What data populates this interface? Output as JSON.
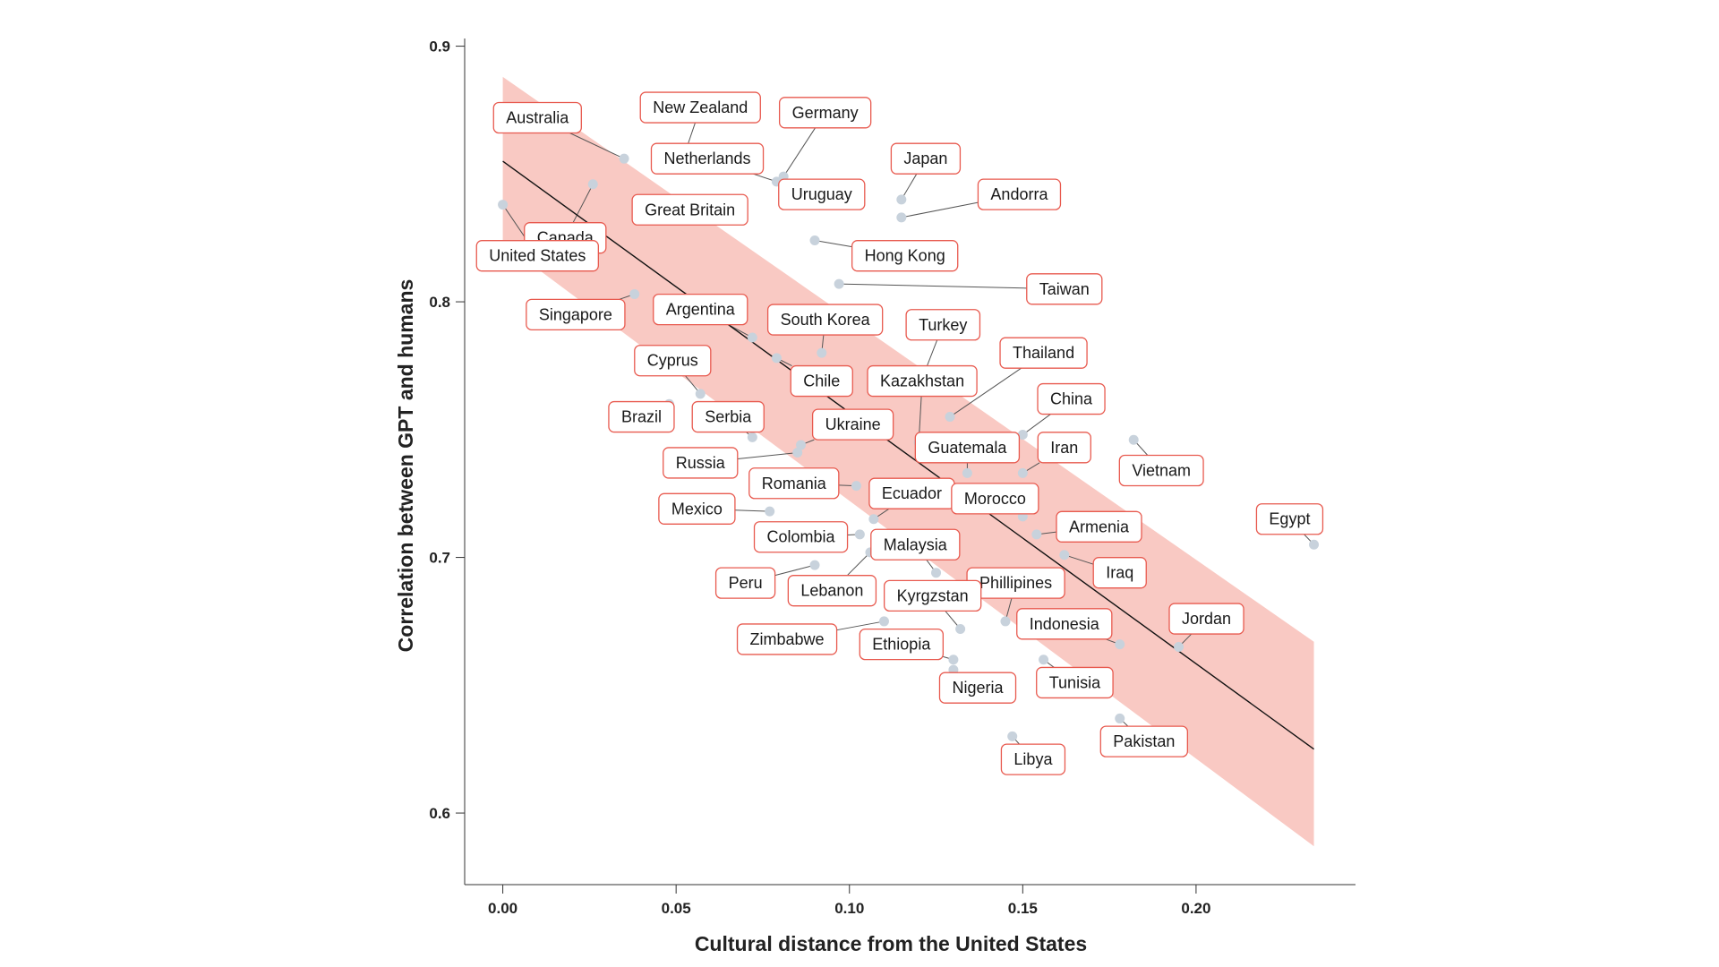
{
  "chart_data": {
    "type": "scatter",
    "title": "",
    "xlabel": "Cultural distance from the United States",
    "ylabel": "Correlation between GPT and humans",
    "xlim": [
      -0.011,
      0.246
    ],
    "ylim": [
      0.572,
      0.903
    ],
    "xticks": [
      0.0,
      0.05,
      0.1,
      0.15,
      0.2
    ],
    "xtick_labels": [
      "0.00",
      "0.05",
      "0.10",
      "0.15",
      "0.20"
    ],
    "yticks": [
      0.6,
      0.7,
      0.8,
      0.9
    ],
    "ytick_labels": [
      "0.6",
      "0.7",
      "0.8",
      "0.9"
    ],
    "regression": {
      "x": [
        0.0,
        0.234
      ],
      "y": [
        0.855,
        0.625
      ]
    },
    "confidence_band": {
      "x": [
        0.0,
        0.234
      ],
      "upper": [
        0.888,
        0.667
      ],
      "lower": [
        0.823,
        0.587
      ]
    },
    "points": [
      {
        "label": "Australia",
        "x": 0.035,
        "y": 0.856,
        "lx": 0.01,
        "ly": 0.872
      },
      {
        "label": "New Zealand",
        "x": 0.053,
        "y": 0.86,
        "lx": 0.057,
        "ly": 0.876
      },
      {
        "label": "Germany",
        "x": 0.081,
        "y": 0.849,
        "lx": 0.093,
        "ly": 0.874
      },
      {
        "label": "Netherlands",
        "x": 0.079,
        "y": 0.847,
        "lx": 0.059,
        "ly": 0.856
      },
      {
        "label": "Japan",
        "x": 0.115,
        "y": 0.84,
        "lx": 0.122,
        "ly": 0.856
      },
      {
        "label": "Canada",
        "x": 0.026,
        "y": 0.846,
        "lx": 0.018,
        "ly": 0.825
      },
      {
        "label": "Andorra",
        "x": 0.115,
        "y": 0.833,
        "lx": 0.149,
        "ly": 0.842
      },
      {
        "label": "Uruguay",
        "x": 0.092,
        "y": 0.84,
        "lx": 0.092,
        "ly": 0.842
      },
      {
        "label": "Great Britain",
        "x": 0.046,
        "y": 0.84,
        "lx": 0.054,
        "ly": 0.836
      },
      {
        "label": "United States",
        "x": 0.0,
        "y": 0.838,
        "lx": 0.01,
        "ly": 0.818
      },
      {
        "label": "Hong Kong",
        "x": 0.09,
        "y": 0.824,
        "lx": 0.116,
        "ly": 0.818
      },
      {
        "label": "Taiwan",
        "x": 0.097,
        "y": 0.807,
        "lx": 0.162,
        "ly": 0.805
      },
      {
        "label": "Singapore",
        "x": 0.038,
        "y": 0.803,
        "lx": 0.021,
        "ly": 0.795
      },
      {
        "label": "Argentina",
        "x": 0.072,
        "y": 0.786,
        "lx": 0.057,
        "ly": 0.797
      },
      {
        "label": "South Korea",
        "x": 0.092,
        "y": 0.78,
        "lx": 0.093,
        "ly": 0.793
      },
      {
        "label": "Turkey",
        "x": 0.121,
        "y": 0.77,
        "lx": 0.127,
        "ly": 0.791
      },
      {
        "label": "Thailand",
        "x": 0.129,
        "y": 0.755,
        "lx": 0.156,
        "ly": 0.78
      },
      {
        "label": "Cyprus",
        "x": 0.057,
        "y": 0.764,
        "lx": 0.049,
        "ly": 0.777
      },
      {
        "label": "Chile",
        "x": 0.079,
        "y": 0.778,
        "lx": 0.092,
        "ly": 0.769
      },
      {
        "label": "Kazakhstan",
        "x": 0.12,
        "y": 0.745,
        "lx": 0.121,
        "ly": 0.769
      },
      {
        "label": "China",
        "x": 0.15,
        "y": 0.748,
        "lx": 0.164,
        "ly": 0.762
      },
      {
        "label": "Brazil",
        "x": 0.048,
        "y": 0.76,
        "lx": 0.04,
        "ly": 0.755
      },
      {
        "label": "Serbia",
        "x": 0.072,
        "y": 0.747,
        "lx": 0.065,
        "ly": 0.755
      },
      {
        "label": "Ukraine",
        "x": 0.086,
        "y": 0.744,
        "lx": 0.101,
        "ly": 0.752
      },
      {
        "label": "Vietnam",
        "x": 0.182,
        "y": 0.746,
        "lx": 0.19,
        "ly": 0.734
      },
      {
        "label": "Guatemala",
        "x": 0.134,
        "y": 0.733,
        "lx": 0.134,
        "ly": 0.743
      },
      {
        "label": "Iran",
        "x": 0.15,
        "y": 0.733,
        "lx": 0.162,
        "ly": 0.743
      },
      {
        "label": "Russia",
        "x": 0.085,
        "y": 0.741,
        "lx": 0.057,
        "ly": 0.737
      },
      {
        "label": "Romania",
        "x": 0.102,
        "y": 0.728,
        "lx": 0.084,
        "ly": 0.729
      },
      {
        "label": "Ecuador",
        "x": 0.107,
        "y": 0.715,
        "lx": 0.118,
        "ly": 0.725
      },
      {
        "label": "Morocco",
        "x": 0.15,
        "y": 0.716,
        "lx": 0.142,
        "ly": 0.723
      },
      {
        "label": "Mexico",
        "x": 0.077,
        "y": 0.718,
        "lx": 0.056,
        "ly": 0.719
      },
      {
        "label": "Armenia",
        "x": 0.154,
        "y": 0.709,
        "lx": 0.172,
        "ly": 0.712
      },
      {
        "label": "Egypt",
        "x": 0.234,
        "y": 0.705,
        "lx": 0.227,
        "ly": 0.715
      },
      {
        "label": "Colombia",
        "x": 0.103,
        "y": 0.709,
        "lx": 0.086,
        "ly": 0.708
      },
      {
        "label": "Malaysia",
        "x": 0.125,
        "y": 0.694,
        "lx": 0.119,
        "ly": 0.705
      },
      {
        "label": "Iraq",
        "x": 0.162,
        "y": 0.701,
        "lx": 0.178,
        "ly": 0.694
      },
      {
        "label": "Peru",
        "x": 0.09,
        "y": 0.697,
        "lx": 0.07,
        "ly": 0.69
      },
      {
        "label": "Phillipines",
        "x": 0.145,
        "y": 0.675,
        "lx": 0.148,
        "ly": 0.69
      },
      {
        "label": "Lebanon",
        "x": 0.106,
        "y": 0.702,
        "lx": 0.095,
        "ly": 0.687
      },
      {
        "label": "Kyrgzstan",
        "x": 0.132,
        "y": 0.672,
        "lx": 0.124,
        "ly": 0.685
      },
      {
        "label": "Jordan",
        "x": 0.195,
        "y": 0.665,
        "lx": 0.203,
        "ly": 0.676
      },
      {
        "label": "Indonesia",
        "x": 0.178,
        "y": 0.666,
        "lx": 0.162,
        "ly": 0.674
      },
      {
        "label": "Zimbabwe",
        "x": 0.11,
        "y": 0.675,
        "lx": 0.082,
        "ly": 0.668
      },
      {
        "label": "Ethiopia",
        "x": 0.13,
        "y": 0.66,
        "lx": 0.115,
        "ly": 0.666
      },
      {
        "label": "Tunisia",
        "x": 0.156,
        "y": 0.66,
        "lx": 0.165,
        "ly": 0.651
      },
      {
        "label": "Nigeria",
        "x": 0.13,
        "y": 0.656,
        "lx": 0.137,
        "ly": 0.649
      },
      {
        "label": "Pakistan",
        "x": 0.178,
        "y": 0.637,
        "lx": 0.185,
        "ly": 0.628
      },
      {
        "label": "Libya",
        "x": 0.147,
        "y": 0.63,
        "lx": 0.153,
        "ly": 0.621
      }
    ]
  },
  "colors": {
    "band": "#f9c9c3",
    "regression": "#111111",
    "point": "#c8d2dc",
    "label_border": "#e85a4f",
    "axis": "#333333"
  }
}
